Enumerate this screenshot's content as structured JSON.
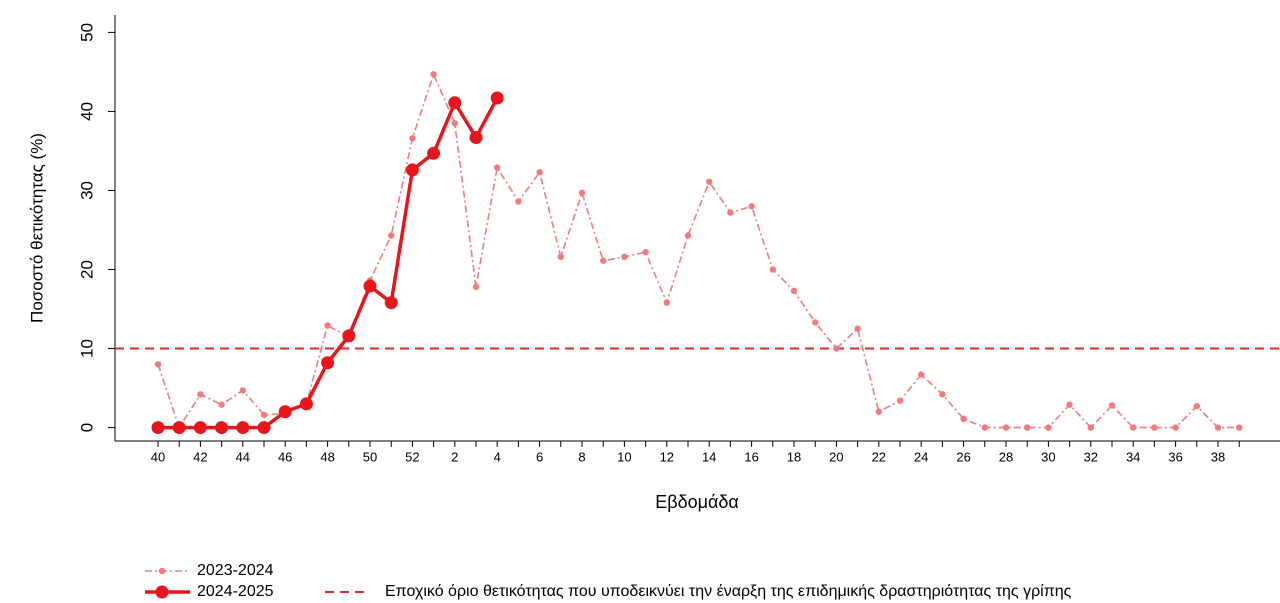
{
  "chart_data": {
    "type": "line",
    "y_label": "Ποσοστό θετικότητας (%)",
    "x_label": "Εβδομάδα",
    "categories": [
      "40",
      null,
      "42",
      null,
      "44",
      null,
      "46",
      null,
      "48",
      null,
      "50",
      null,
      "52",
      null,
      "2",
      null,
      "4",
      null,
      "6",
      null,
      "8",
      null,
      "10",
      null,
      "12",
      null,
      "14",
      null,
      "16",
      null,
      "18",
      null,
      "20",
      null,
      "22",
      null,
      "24",
      null,
      "26",
      null,
      "28",
      null,
      "30",
      null,
      "32",
      null,
      "34",
      null,
      "36",
      null,
      "38",
      null
    ],
    "series": [
      {
        "name": "2023-2024",
        "color": "#f47a7c",
        "values": [
          8.0,
          0,
          4.2,
          2.9,
          4.7,
          1.6,
          1.8,
          3.0,
          12.9,
          11.5,
          18.6,
          24.3,
          36.6,
          44.7,
          38.5,
          17.8,
          32.9,
          28.6,
          32.3,
          21.6,
          29.7,
          21.1,
          21.6,
          22.2,
          15.8,
          24.3,
          31.1,
          27.2,
          28.0,
          20.0,
          17.3,
          13.3,
          10.0,
          12.5,
          2.0,
          3.4,
          6.7,
          4.2,
          1.1,
          0,
          0,
          0,
          0,
          2.9,
          0,
          2.8,
          0,
          0,
          0,
          2.7,
          0,
          0
        ]
      },
      {
        "name": "2024-2025",
        "color": "#e8161c",
        "values": [
          0,
          0,
          0,
          0,
          0,
          0,
          2.0,
          3.0,
          8.2,
          11.6,
          17.9,
          15.8,
          32.6,
          34.7,
          41.1,
          36.7,
          41.7,
          null,
          null,
          null,
          null,
          null,
          null,
          null,
          null,
          null,
          null,
          null,
          null,
          null,
          null,
          null,
          null,
          null,
          null,
          null,
          null,
          null,
          null,
          null,
          null,
          null,
          null,
          null,
          null,
          null,
          null,
          null,
          null,
          null,
          null,
          null
        ]
      }
    ],
    "threshold": {
      "name": "Εποχικό όριο θετικότητας που υποδεικνύει την έναρξη της επιδημικής δραστηριότητας της γρίπης",
      "value": 10,
      "color": "#e8262b"
    },
    "ylim": [
      -1.7,
      52.2
    ],
    "yticks": [
      0,
      10,
      20,
      30,
      40,
      50
    ],
    "grid": false
  }
}
